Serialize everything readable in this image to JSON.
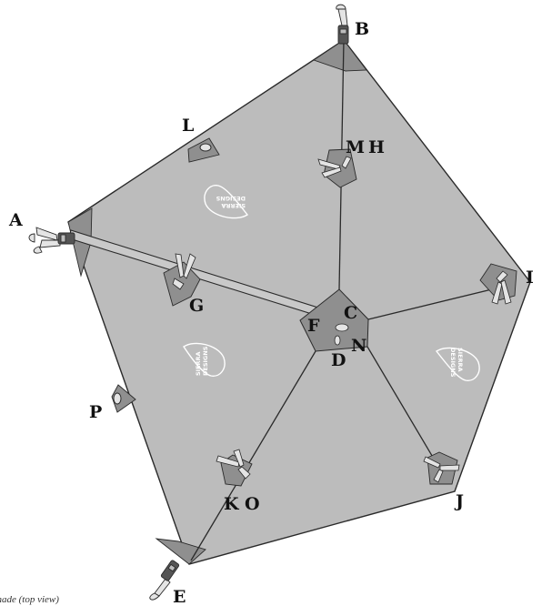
{
  "caption": "Shade (top view)",
  "logo": {
    "line1": "SIERRA",
    "line2": "DESIGNS"
  },
  "labels": {
    "a": "A",
    "b": "B",
    "c": "C",
    "d": "D",
    "e": "E",
    "f": "F",
    "g": "G",
    "i": "I",
    "j": "J",
    "k": "K",
    "l": "L",
    "m": "M",
    "h": "H",
    "n": "N",
    "o": "O",
    "p": "P"
  },
  "colors": {
    "fabric": "#bcbcbc",
    "patch": "#8f8f8f",
    "line": "#2a2a2a",
    "tie": "#e4e4e4"
  }
}
